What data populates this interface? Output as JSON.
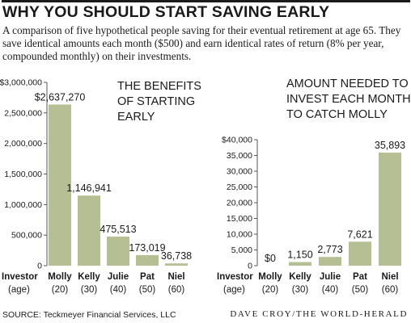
{
  "headline": "WHY YOU SHOULD START SAVING EARLY",
  "intro": "A comparison of five hypothetical people saving for their eventual retirement at age 65. They save identical amounts each month ($500) and earn identical rates of return (8% per year, compounded monthly) on their investments.",
  "source": "SOURCE: Teckmeyer Financial Services, LLC",
  "credit": "DAVE CROY/THE WORLD-HERALD",
  "colors": {
    "bar": "#b5bf93",
    "text": "#1a1a1a",
    "axis": "#555555"
  },
  "chart_data": [
    {
      "type": "bar",
      "title_lines": [
        "THE BENEFITS",
        "OF STARTING",
        "EARLY"
      ],
      "row_label": "Investor",
      "age_label": "(age)",
      "categories": [
        "Molly",
        "Kelly",
        "Julie",
        "Pat",
        "Niel"
      ],
      "ages": [
        "(20)",
        "(30)",
        "(40)",
        "(50)",
        "(60)"
      ],
      "values": [
        2637270,
        1146941,
        475513,
        173019,
        36738
      ],
      "value_labels": [
        "$2,637,270",
        "1,146,941",
        "475,513",
        "173,019",
        "36,738"
      ],
      "yticks": [
        0,
        500000,
        1000000,
        1500000,
        2000000,
        2500000,
        3000000
      ],
      "ytick_labels": [
        "0",
        "500,000",
        "1,000,000",
        "1,500,000",
        "2,000,000",
        "2,500,000",
        "$3,000,000"
      ],
      "ylim": [
        0,
        3000000
      ],
      "grid": false
    },
    {
      "type": "bar",
      "title_lines": [
        "AMOUNT NEEDED TO",
        "INVEST EACH MONTH",
        "TO CATCH MOLLY"
      ],
      "row_label": "Investor",
      "age_label": "(age)",
      "categories": [
        "Molly",
        "Kelly",
        "Julie",
        "Pat",
        "Niel"
      ],
      "ages": [
        "(20)",
        "(30)",
        "(40)",
        "(50)",
        "(60)"
      ],
      "values": [
        0,
        1150,
        2773,
        7621,
        35893
      ],
      "value_labels": [
        "$0",
        "1,150",
        "2,773",
        "7,621",
        "35,893"
      ],
      "yticks": [
        0,
        5000,
        10000,
        15000,
        20000,
        25000,
        30000,
        35000,
        40000
      ],
      "ytick_labels": [
        "0",
        "5,000",
        "10,000",
        "15,000",
        "20,000",
        "25,000",
        "30,000",
        "35,000",
        "$40,000"
      ],
      "ylim": [
        0,
        40000
      ],
      "grid": false
    }
  ]
}
